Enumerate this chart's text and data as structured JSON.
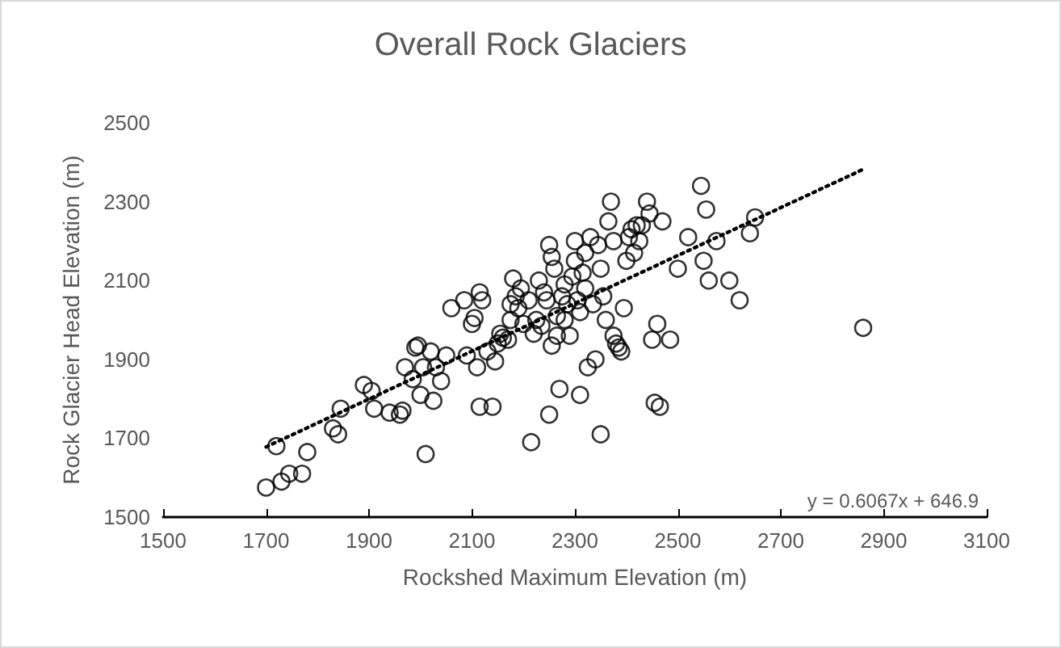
{
  "chart_data": {
    "type": "scatter",
    "title": "Overall Rock Glaciers",
    "xlabel": "Rockshed Maximum Elevation (m)",
    "ylabel": "Rock Glacier Head Elevation (m)",
    "xlim": [
      1500,
      3100
    ],
    "xticks": [
      1500,
      1700,
      1900,
      2100,
      2300,
      2500,
      2700,
      2900,
      3100
    ],
    "ylim": [
      1500,
      2500
    ],
    "yticks": [
      1500,
      1700,
      1900,
      2100,
      2300,
      2500
    ],
    "grid": false,
    "marker": "circle",
    "annotations": [
      "y = 0.6067x + 646.9"
    ],
    "series": [
      {
        "color": "#000000",
        "x": [
          1700,
          1720,
          1730,
          1745,
          1770,
          1780,
          1830,
          1840,
          1845,
          1890,
          1905,
          1910,
          1940,
          1960,
          1965,
          1970,
          1985,
          1990,
          1995,
          2000,
          2005,
          2010,
          2020,
          2025,
          2030,
          2040,
          2050,
          2060,
          2085,
          2090,
          2100,
          2105,
          2110,
          2115,
          2115,
          2120,
          2130,
          2140,
          2145,
          2150,
          2155,
          2160,
          2170,
          2175,
          2175,
          2180,
          2185,
          2190,
          2195,
          2200,
          2210,
          2215,
          2220,
          2225,
          2230,
          2235,
          2240,
          2245,
          2250,
          2250,
          2255,
          2255,
          2260,
          2265,
          2265,
          2270,
          2275,
          2280,
          2280,
          2285,
          2290,
          2295,
          2300,
          2300,
          2305,
          2310,
          2310,
          2315,
          2320,
          2320,
          2325,
          2330,
          2335,
          2340,
          2345,
          2350,
          2350,
          2355,
          2360,
          2365,
          2370,
          2375,
          2375,
          2380,
          2385,
          2390,
          2395,
          2400,
          2405,
          2410,
          2415,
          2420,
          2425,
          2430,
          2440,
          2445,
          2450,
          2455,
          2460,
          2465,
          2470,
          2485,
          2500,
          2520,
          2545,
          2550,
          2555,
          2560,
          2575,
          2600,
          2620,
          2640,
          2650,
          2860
        ],
        "values": [
          1575,
          1680,
          1590,
          1610,
          1610,
          1665,
          1725,
          1710,
          1775,
          1835,
          1820,
          1775,
          1765,
          1760,
          1770,
          1880,
          1850,
          1930,
          1935,
          1810,
          1880,
          1660,
          1920,
          1795,
          1880,
          1845,
          1910,
          2030,
          2050,
          1910,
          1990,
          2005,
          1880,
          1780,
          2070,
          2050,
          1920,
          1780,
          1895,
          1940,
          1965,
          1955,
          1950,
          2000,
          2040,
          2105,
          2060,
          2030,
          2080,
          1990,
          2050,
          1690,
          1965,
          2000,
          2100,
          1985,
          2070,
          2050,
          2190,
          1760,
          2160,
          1935,
          2130,
          2010,
          1960,
          1825,
          2060,
          2000,
          2090,
          2040,
          1960,
          2110,
          2150,
          2200,
          2050,
          2020,
          1810,
          2120,
          2170,
          2080,
          1880,
          2210,
          2040,
          1900,
          2190,
          1710,
          2130,
          2060,
          2000,
          2250,
          2300,
          2200,
          1960,
          1940,
          1930,
          1920,
          2030,
          2150,
          2210,
          2230,
          2170,
          2240,
          2200,
          2240,
          2300,
          2270,
          1950,
          1790,
          1990,
          1780,
          2250,
          1950,
          2130,
          2210,
          2340,
          2150,
          2280,
          2100,
          2200,
          2100,
          2050,
          2220,
          2260,
          1980
        ]
      },
      {
        "type": "line",
        "color": "#000000",
        "line_style": "dotted",
        "marker": "none",
        "x": [
          1700,
          2860
        ],
        "values": [
          1678,
          2382
        ]
      }
    ]
  }
}
